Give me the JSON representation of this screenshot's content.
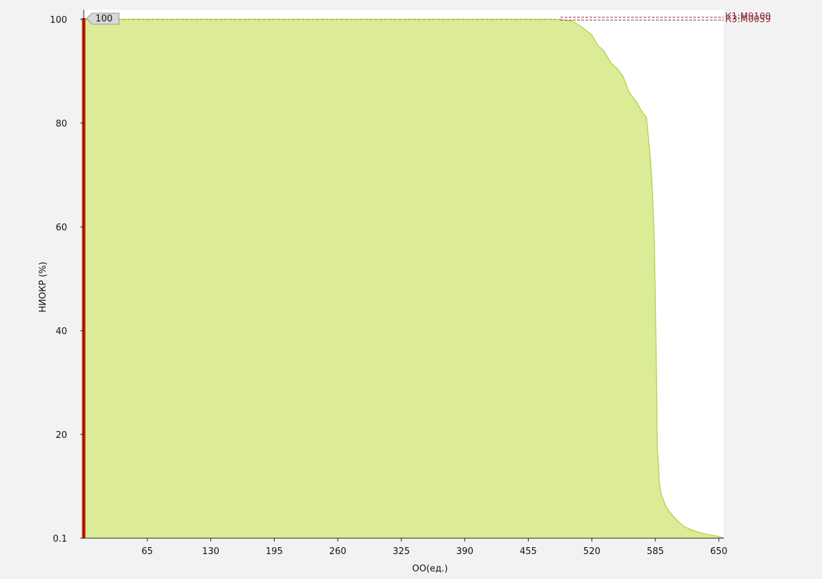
{
  "colors": {
    "background": "#f2f2f2",
    "plot_background": "#ffffff",
    "area_fill": "#dbeb96",
    "area_stroke": "#b5d85a",
    "marker_line": "#dd1c00",
    "reference_line": "#8b2a3a",
    "dashed_100": "#9a9a30"
  },
  "chart_data": {
    "type": "area",
    "xlabel": "ОО(ед.)",
    "ylabel": "НИОКР (%)",
    "xlim": [
      0,
      655
    ],
    "ylim": [
      0,
      100
    ],
    "x_ticks": [
      65,
      130,
      195,
      260,
      325,
      390,
      455,
      520,
      585,
      650
    ],
    "y_ticks": [
      {
        "value": 0,
        "label": "0.1"
      },
      {
        "value": 20,
        "label": "20"
      },
      {
        "value": 40,
        "label": "40"
      },
      {
        "value": 60,
        "label": "60"
      },
      {
        "value": 80,
        "label": "80"
      },
      {
        "value": 100,
        "label": "100"
      }
    ],
    "grid": false,
    "series": [
      {
        "x": [
          0,
          480,
          500,
          510,
          520,
          526,
          532,
          540,
          546,
          552,
          558,
          566,
          572,
          576,
          580,
          582,
          584,
          585,
          586,
          587,
          588,
          589,
          590,
          591,
          592,
          593,
          594,
          596,
          598,
          602,
          608,
          614,
          622,
          632,
          640,
          648,
          652,
          655
        ],
        "y": [
          100,
          100,
          99.7,
          98.5,
          97,
          95,
          94,
          91.5,
          90.5,
          89,
          86,
          84,
          82,
          81,
          73,
          67,
          57,
          46,
          33,
          17,
          15,
          11,
          9.5,
          8.5,
          8,
          7.5,
          7,
          6,
          5.5,
          4.5,
          3.3,
          2.3,
          1.6,
          1.0,
          0.7,
          0.4,
          0.2,
          0.1
        ]
      }
    ],
    "marker": {
      "x": 0,
      "label": "100"
    },
    "reference_labels": [
      "К1:М9100",
      "К3:М0059"
    ],
    "reference_value": 100
  }
}
